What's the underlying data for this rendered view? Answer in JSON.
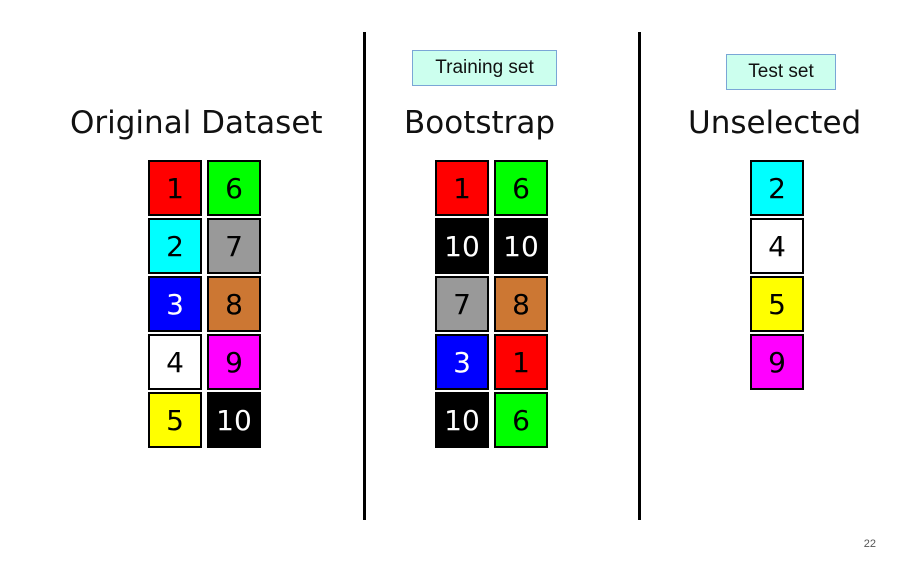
{
  "headings": {
    "original": "Original Dataset",
    "bootstrap": "Bootstrap",
    "unselected": "Unselected"
  },
  "tags": {
    "training": "Training set",
    "test": "Test set"
  },
  "colors": {
    "1": "#ff0000",
    "2": "#00ffff",
    "3": "#0000ff",
    "4": "#ffffff",
    "5": "#ffff00",
    "6": "#00ff00",
    "7": "#999999",
    "8": "#cc7733",
    "9": "#ff00ff",
    "10": "#000000"
  },
  "original_dataset": {
    "column_1": [
      "1",
      "2",
      "3",
      "4",
      "5"
    ],
    "column_2": [
      "6",
      "7",
      "8",
      "9",
      "10"
    ]
  },
  "bootstrap": {
    "column_1": [
      "1",
      "10",
      "7",
      "3",
      "10"
    ],
    "column_2": [
      "6",
      "10",
      "8",
      "1",
      "6"
    ]
  },
  "unselected": [
    "2",
    "4",
    "5",
    "9"
  ],
  "page_number": "22"
}
